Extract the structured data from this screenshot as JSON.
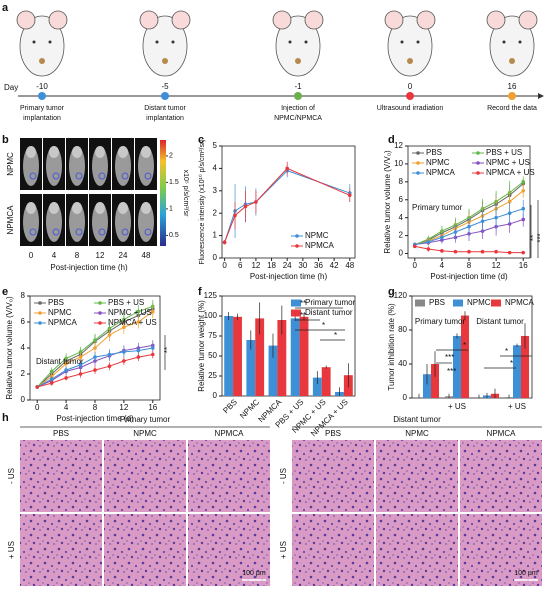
{
  "panel_labels": [
    "a",
    "b",
    "c",
    "d",
    "e",
    "f",
    "g",
    "h"
  ],
  "timeline": {
    "axis_label": "Day",
    "events": [
      {
        "day": -10,
        "color": "#3d8fd6",
        "lines": [
          "Primary tumor",
          "implantation"
        ]
      },
      {
        "day": -5,
        "color": "#3d8fd6",
        "lines": [
          "Distant tumor",
          "implantation"
        ]
      },
      {
        "day": -1,
        "color": "#6ab04c",
        "lines": [
          "Injection of",
          "NPMC/NPMCA"
        ]
      },
      {
        "day": 0,
        "color": "#e8383d",
        "lines": [
          "Ultrasound irradiation"
        ]
      },
      {
        "day": 16,
        "color": "#f0a030",
        "lines": [
          "Record the data"
        ]
      }
    ]
  },
  "imaging": {
    "rows": [
      "NPMC",
      "NPMCA"
    ],
    "times": [
      0,
      4,
      8,
      12,
      24,
      48
    ],
    "xlabel": "Post-injection time (h)",
    "colorbar": {
      "ticks": [
        2,
        1.5,
        1,
        0.5
      ],
      "label": "x10⁵ p/s/cm²/sr"
    }
  },
  "chart_data": [
    {
      "type": "line",
      "xlabel": "Post-injection time (h)",
      "ylabel": "Fluorescence intensity (x10¹⁰ p/s/cm²/sr)",
      "x": [
        0,
        4,
        8,
        12,
        24,
        48
      ],
      "xlim": [
        -1,
        50
      ],
      "xticks": [
        0,
        6,
        12,
        18,
        24,
        30,
        36,
        42,
        48
      ],
      "ylim": [
        0,
        5
      ],
      "yticks": [
        0,
        1,
        2,
        3,
        4,
        5
      ],
      "legend": "lower right",
      "legend_columns": 1,
      "annotations": [],
      "series": [
        {
          "name": "NPMC",
          "color": "#3d8fd6",
          "values": [
            0.7,
            2.1,
            2.4,
            2.5,
            3.9,
            2.9
          ],
          "errors": [
            0.1,
            1.2,
            0.8,
            0.6,
            0.3,
            0.4
          ]
        },
        {
          "name": "NPMCA",
          "color": "#e8383d",
          "values": [
            0.7,
            1.9,
            2.3,
            2.5,
            4.0,
            2.8
          ],
          "errors": [
            0.1,
            0.6,
            0.7,
            0.5,
            0.3,
            0.3
          ]
        }
      ]
    },
    {
      "type": "line",
      "xlabel": "Post-injection time (d)",
      "ylabel": "Relative tumor volume (V/V₀)",
      "x": [
        0,
        2,
        4,
        6,
        8,
        10,
        12,
        14,
        16
      ],
      "xlim": [
        -1,
        17
      ],
      "xticks": [
        0,
        4,
        8,
        12,
        16
      ],
      "ylim": [
        -0.5,
        12
      ],
      "yticks": [
        0,
        2,
        4,
        6,
        8,
        10,
        12
      ],
      "legend": "upper left",
      "legend_columns": 2,
      "annotations": [
        "Primary tumor",
        "**",
        "***"
      ],
      "series": [
        {
          "name": "PBS",
          "color": "#666666",
          "values": [
            1,
            1.5,
            2.3,
            3,
            3.8,
            4.8,
            5.5,
            6.5,
            7.8
          ],
          "errors": [
            0.2,
            0.4,
            0.6,
            0.8,
            1,
            1,
            1.2,
            1.2,
            0.5
          ]
        },
        {
          "name": "PBS + US",
          "color": "#5fb848",
          "values": [
            1,
            1.6,
            2.5,
            3.2,
            4,
            5,
            5.8,
            6.8,
            8
          ],
          "errors": [
            0.2,
            0.4,
            0.6,
            0.8,
            1,
            1.1,
            1.2,
            1.3,
            0.6
          ]
        },
        {
          "name": "NPMC",
          "color": "#f0a030",
          "values": [
            1,
            1.4,
            2,
            2.8,
            3.5,
            4.2,
            5,
            5.8,
            7
          ],
          "errors": [
            0.2,
            0.4,
            0.6,
            0.8,
            1,
            1,
            1.2,
            1.2,
            0.8
          ]
        },
        {
          "name": "NPMC + US",
          "color": "#8a4fc0",
          "values": [
            1,
            1.2,
            1.5,
            1.8,
            2.2,
            2.5,
            3,
            3.3,
            3.8
          ],
          "errors": [
            0.2,
            0.3,
            0.4,
            0.6,
            0.8,
            0.9,
            1,
            1,
            0.8
          ]
        },
        {
          "name": "NPMCA",
          "color": "#3d8fd6",
          "values": [
            1,
            1.3,
            1.8,
            2.4,
            3,
            3.6,
            4,
            4.5,
            5
          ],
          "errors": [
            0.2,
            0.3,
            0.5,
            0.8,
            1,
            1.2,
            1.3,
            1.2,
            1
          ]
        },
        {
          "name": "NPMCA + US",
          "color": "#e8383d",
          "values": [
            0.8,
            0.5,
            0.3,
            0.2,
            0.2,
            0.2,
            0.2,
            0.1,
            0.1
          ],
          "errors": [
            0.2,
            0.3,
            0.2,
            0.2,
            0.2,
            0.2,
            0.2,
            0.1,
            0.1
          ]
        }
      ]
    },
    {
      "type": "line",
      "xlabel": "Post-injection time (d)",
      "ylabel": "Relative tumor volume (V/V₀)",
      "x": [
        0,
        2,
        4,
        6,
        8,
        10,
        12,
        14,
        16
      ],
      "xlim": [
        -1,
        17
      ],
      "xticks": [
        0,
        4,
        8,
        12,
        16
      ],
      "ylim": [
        0,
        8
      ],
      "yticks": [
        0,
        2,
        4,
        6,
        8
      ],
      "legend": "upper left",
      "legend_columns": 2,
      "annotations": [
        "Distant tumor",
        "**"
      ],
      "series": [
        {
          "name": "PBS",
          "color": "#666666",
          "values": [
            1,
            2,
            3,
            3.5,
            4.5,
            5.3,
            6,
            6.5,
            7
          ],
          "errors": [
            0.1,
            0.3,
            0.4,
            0.4,
            0.5,
            0.5,
            0.5,
            0.5,
            0.5
          ]
        },
        {
          "name": "PBS + US",
          "color": "#5fb848",
          "values": [
            1,
            2.2,
            3.2,
            3.7,
            4.6,
            5.5,
            6.2,
            6.8,
            7.2
          ],
          "errors": [
            0.1,
            0.3,
            0.4,
            0.4,
            0.5,
            0.5,
            0.5,
            0.5,
            0.5
          ]
        },
        {
          "name": "NPMC",
          "color": "#f0a030",
          "values": [
            1,
            1.8,
            2.8,
            3.3,
            4,
            5,
            5.6,
            6,
            6.8
          ],
          "errors": [
            0.1,
            0.3,
            0.4,
            0.4,
            0.5,
            0.5,
            0.5,
            0.5,
            0.5
          ]
        },
        {
          "name": "NPMC + US",
          "color": "#8a4fc0",
          "values": [
            1,
            1.5,
            2.2,
            2.5,
            3,
            3.4,
            3.8,
            4,
            4.2
          ],
          "errors": [
            0.1,
            0.2,
            0.3,
            0.3,
            0.4,
            0.4,
            0.4,
            0.4,
            0.4
          ]
        },
        {
          "name": "NPMCA",
          "color": "#3d8fd6",
          "values": [
            1,
            1.6,
            2.3,
            2.7,
            3.3,
            3.5,
            3.7,
            3.8,
            4
          ],
          "errors": [
            0.1,
            0.2,
            0.3,
            0.3,
            0.4,
            0.4,
            0.4,
            0.4,
            0.4
          ]
        },
        {
          "name": "NPMCA + US",
          "color": "#e8383d",
          "values": [
            1,
            1.3,
            1.7,
            2,
            2.3,
            2.6,
            3,
            3.3,
            3.5
          ],
          "errors": [
            0.1,
            0.2,
            0.2,
            0.3,
            0.3,
            0.3,
            0.3,
            0.3,
            0.3
          ]
        }
      ]
    },
    {
      "type": "bar",
      "ylabel": "Relative tumor weight (%)",
      "categories": [
        "PBS",
        "NPMC",
        "NPMCA",
        "PBS + US",
        "NPMC + US",
        "NPMCA + US"
      ],
      "ylim": [
        0,
        125
      ],
      "yticks": [
        0,
        25,
        50,
        75,
        100,
        125
      ],
      "legend": "upper right",
      "legend_columns": 1,
      "annotations": [
        "**",
        "**",
        "*",
        "*"
      ],
      "series": [
        {
          "name": "Primary tumor",
          "color": "#3d8fd6",
          "values": [
            100,
            70,
            63,
            97,
            23,
            5
          ],
          "errors": [
            5,
            12,
            15,
            3,
            8,
            6
          ]
        },
        {
          "name": "Distant tumor",
          "color": "#e8383d",
          "values": [
            99,
            97,
            95,
            99,
            36,
            26
          ],
          "errors": [
            4,
            20,
            18,
            4,
            2,
            15
          ]
        }
      ]
    },
    {
      "type": "bar",
      "ylabel": "Tumor inhibition rate (%)",
      "categories": [
        null,
        "+ US",
        null,
        "+ US"
      ],
      "ylim": [
        0,
        120
      ],
      "yticks": [
        0,
        40,
        80,
        120
      ],
      "legend": "upper center",
      "legend_columns": 3,
      "annotations": [
        "Primary tumor",
        "Distant tumor",
        "***",
        "*",
        "***",
        "*",
        "*"
      ],
      "series": [
        {
          "name": "PBS",
          "color": "#888888",
          "values": [
            0,
            2,
            0,
            1
          ],
          "errors": [
            5,
            3,
            4,
            3
          ]
        },
        {
          "name": "NPMC",
          "color": "#3d8fd6",
          "values": [
            28,
            73,
            3,
            62
          ],
          "errors": [
            12,
            3,
            3,
            2
          ]
        },
        {
          "name": "NPMCA",
          "color": "#e8383d",
          "values": [
            40,
            97,
            5,
            73
          ],
          "errors": [
            15,
            5,
            6,
            15
          ]
        }
      ]
    }
  ],
  "histology": {
    "groups": [
      {
        "title": "Primary tumor",
        "columns": [
          "PBS",
          "NPMC",
          "NPMCA"
        ]
      },
      {
        "title": "Distant tumor",
        "columns": [
          "PBS",
          "NPMC",
          "NPMCA"
        ]
      }
    ],
    "rows": [
      "- US",
      "+ US"
    ],
    "scale_bar": "100 μm"
  }
}
